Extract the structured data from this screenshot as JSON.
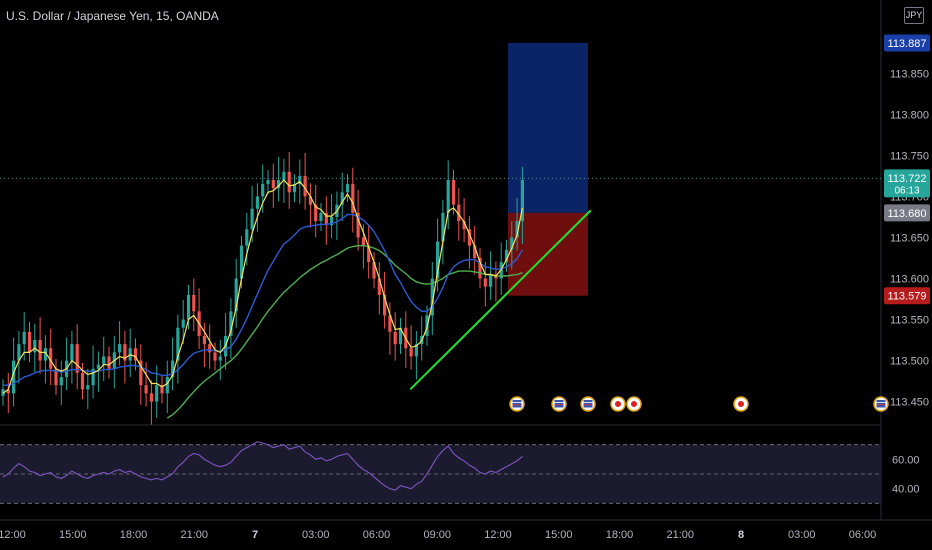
{
  "title": "U.S. Dollar / Japanese Yen, 15, OANDA",
  "currency_button": "JPY",
  "chart_data": {
    "type": "candlestick",
    "symbol": "USDJPY",
    "interval": "15",
    "source": "OANDA",
    "price_range": [
      113.43,
      113.915
    ],
    "y_ticks": [
      "113.850",
      "113.800",
      "113.750",
      "113.700",
      "113.650",
      "113.600",
      "113.550",
      "113.500",
      "113.450"
    ],
    "x_ticks": [
      "12:00",
      "15:00",
      "18:00",
      "21:00",
      "7",
      "03:00",
      "06:00",
      "09:00",
      "12:00",
      "15:00",
      "18:00",
      "21:00",
      "8",
      "03:00",
      "06:00"
    ],
    "price_labels": [
      {
        "text": "113.887",
        "price": 113.887,
        "color": "#1a3fa8"
      },
      {
        "text": "113.722",
        "sub": "06:13",
        "price": 113.722,
        "color": "#26a69a"
      },
      {
        "text": "113.680",
        "price": 113.68,
        "color": "#787b86"
      },
      {
        "text": "113.579",
        "price": 113.579,
        "color": "#b71c1c"
      }
    ],
    "current_price": 113.722,
    "position": {
      "entry": 113.68,
      "target": 113.887,
      "stop": 113.579
    },
    "trendline": [
      {
        "t": "07:40",
        "p": 113.465
      },
      {
        "t": "16:35",
        "p": 113.683
      }
    ],
    "closes": [
      113.465,
      113.46,
      113.5,
      113.52,
      113.535,
      113.51,
      113.525,
      113.5,
      113.515,
      113.49,
      113.47,
      113.48,
      113.5,
      113.52,
      113.485,
      113.465,
      113.47,
      113.49,
      113.495,
      113.505,
      113.49,
      113.51,
      113.52,
      113.5,
      113.515,
      113.5,
      113.47,
      113.46,
      113.45,
      113.47,
      113.46,
      113.48,
      113.5,
      113.54,
      113.55,
      113.58,
      113.56,
      113.53,
      113.52,
      113.51,
      113.5,
      113.505,
      113.53,
      113.56,
      113.6,
      113.64,
      113.66,
      113.685,
      113.7,
      113.715,
      113.72,
      113.71,
      113.72,
      113.73,
      113.705,
      113.715,
      113.725,
      113.7,
      113.69,
      113.67,
      113.68,
      113.665,
      113.675,
      113.69,
      113.705,
      113.715,
      113.68,
      113.65,
      113.64,
      113.62,
      113.6,
      113.58,
      113.555,
      113.535,
      113.52,
      113.54,
      113.515,
      113.505,
      113.52,
      113.53,
      113.555,
      113.6,
      113.645,
      113.68,
      113.72,
      113.69,
      113.67,
      113.66,
      113.64,
      113.625,
      113.6,
      113.59,
      113.605,
      113.6,
      113.62,
      113.635,
      113.65,
      113.67,
      113.72
    ],
    "ma_fast": [
      113.46,
      113.465,
      113.485,
      113.5,
      113.51,
      113.51,
      113.515,
      113.51,
      113.51,
      113.5,
      113.49,
      113.487,
      113.49,
      113.5,
      113.495,
      113.488,
      113.483,
      113.485,
      113.488,
      113.495,
      113.495,
      113.5,
      113.505,
      113.503,
      113.507,
      113.505,
      113.493,
      113.483,
      113.472,
      113.472,
      113.468,
      113.472,
      113.482,
      113.505,
      113.525,
      113.55,
      113.555,
      113.545,
      113.535,
      113.524,
      113.513,
      113.51,
      113.518,
      113.536,
      113.565,
      113.6,
      113.63,
      113.655,
      113.675,
      113.692,
      113.705,
      113.707,
      113.713,
      113.72,
      113.713,
      113.714,
      113.718,
      113.71,
      113.7,
      113.687,
      113.684,
      113.676,
      113.676,
      113.682,
      113.693,
      113.703,
      113.692,
      113.672,
      113.656,
      113.638,
      113.62,
      113.6,
      113.577,
      113.556,
      113.538,
      113.539,
      113.527,
      113.516,
      113.518,
      113.524,
      113.54,
      113.57,
      113.608,
      113.645,
      113.682,
      113.686,
      113.678,
      113.669,
      113.654,
      113.639,
      113.62,
      113.605,
      113.605,
      113.603,
      113.611,
      113.623,
      113.637,
      113.653,
      113.686
    ],
    "ma_mid": [
      113.47,
      113.47,
      113.472,
      113.476,
      113.48,
      113.482,
      113.485,
      113.487,
      113.488,
      113.488,
      113.487,
      113.486,
      113.487,
      113.489,
      113.489,
      113.488,
      113.487,
      113.487,
      113.487,
      113.489,
      113.489,
      113.49,
      113.492,
      113.493,
      113.494,
      113.494,
      113.492,
      113.489,
      113.485,
      113.484,
      113.482,
      113.482,
      113.484,
      113.489,
      113.495,
      113.503,
      113.509,
      113.511,
      113.513,
      113.513,
      113.512,
      113.511,
      113.513,
      113.517,
      113.526,
      113.538,
      113.551,
      113.566,
      113.581,
      113.596,
      113.61,
      113.621,
      113.632,
      113.642,
      113.647,
      113.653,
      113.66,
      113.663,
      113.664,
      113.665,
      113.666,
      113.666,
      113.667,
      113.669,
      113.673,
      113.678,
      113.678,
      113.675,
      113.671,
      113.665,
      113.657,
      113.646,
      113.634,
      113.62,
      113.605,
      113.595,
      113.583,
      113.572,
      113.565,
      113.56,
      113.56,
      113.566,
      113.576,
      113.589,
      113.605,
      113.614,
      113.619,
      113.622,
      113.623,
      113.623,
      113.619,
      113.614,
      113.613,
      113.611,
      113.612,
      113.614,
      113.618,
      113.624,
      113.635
    ],
    "ma_slow": [
      null,
      null,
      null,
      null,
      null,
      null,
      null,
      null,
      null,
      null,
      null,
      null,
      null,
      null,
      null,
      null,
      null,
      null,
      null,
      null,
      null,
      null,
      null,
      null,
      null,
      null,
      null,
      null,
      null,
      null,
      null,
      113.43,
      113.434,
      113.44,
      113.447,
      113.455,
      113.462,
      113.469,
      113.475,
      113.48,
      113.485,
      113.49,
      113.495,
      113.5,
      113.506,
      113.514,
      113.523,
      113.532,
      113.541,
      113.551,
      113.56,
      113.568,
      113.576,
      113.583,
      113.589,
      113.595,
      113.601,
      113.606,
      113.611,
      113.615,
      113.619,
      113.622,
      113.626,
      113.629,
      113.633,
      113.637,
      113.639,
      113.64,
      113.64,
      113.639,
      113.637,
      113.634,
      113.629,
      113.623,
      113.616,
      113.611,
      113.606,
      113.6,
      113.596,
      113.594,
      113.593,
      113.594,
      113.597,
      113.6,
      113.605,
      113.607,
      113.609,
      113.609,
      113.609,
      113.608,
      113.607,
      113.605,
      113.604,
      113.603,
      113.603,
      113.603,
      113.604,
      113.605,
      113.607
    ],
    "rsi": {
      "ticks": [
        "60.00",
        "40.00"
      ],
      "levels": [
        70,
        50,
        30
      ],
      "range": [
        20,
        80
      ],
      "values": [
        48,
        50,
        54,
        57,
        55,
        52,
        51,
        49,
        50,
        51,
        48,
        47,
        49,
        52,
        50,
        48,
        47,
        49,
        50,
        51,
        50,
        52,
        53,
        51,
        52,
        50,
        48,
        47,
        46,
        47,
        46,
        48,
        50,
        55,
        58,
        62,
        64,
        63,
        60,
        58,
        56,
        55,
        56,
        58,
        62,
        66,
        68,
        70,
        72,
        71,
        70,
        68,
        69,
        70,
        67,
        68,
        69,
        65,
        63,
        60,
        61,
        59,
        60,
        62,
        63,
        64,
        60,
        56,
        53,
        51,
        48,
        45,
        42,
        40,
        39,
        42,
        41,
        40,
        43,
        45,
        50,
        56,
        62,
        66,
        69,
        64,
        61,
        59,
        56,
        54,
        51,
        50,
        52,
        51,
        53,
        55,
        57,
        59,
        62
      ]
    }
  }
}
